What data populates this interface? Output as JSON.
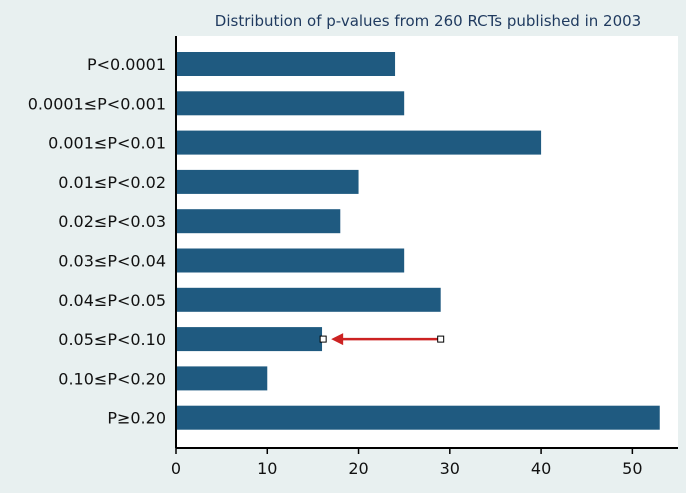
{
  "chart_data": {
    "type": "bar",
    "orientation": "horizontal",
    "title": "Distribution of p-values from 260 RCTs published in 2003",
    "xlabel": "",
    "ylabel": "",
    "categories": [
      "P<0.0001",
      "0.0001≤P<0.001",
      "0.001≤P<0.01",
      "0.01≤P<0.02",
      "0.02≤P<0.03",
      "0.03≤P<0.04",
      "0.04≤P<0.05",
      "0.05≤P<0.10",
      "0.10≤P<0.20",
      "P≥0.20"
    ],
    "values": [
      24,
      25,
      40,
      20,
      18,
      25,
      29,
      16,
      10,
      53
    ],
    "xlim": [
      0,
      55
    ],
    "xticks": [
      0,
      10,
      20,
      30,
      40,
      50
    ],
    "grid": false,
    "annotation": {
      "type": "arrow",
      "category": "0.05≤P<0.10",
      "from_x": 29,
      "to_x": 17,
      "color": "#cc2222"
    }
  },
  "colors": {
    "bar": "#1f5a80",
    "background": "#e8f0f0",
    "plot_background": "#ffffff",
    "text": "#1f3a5f"
  }
}
